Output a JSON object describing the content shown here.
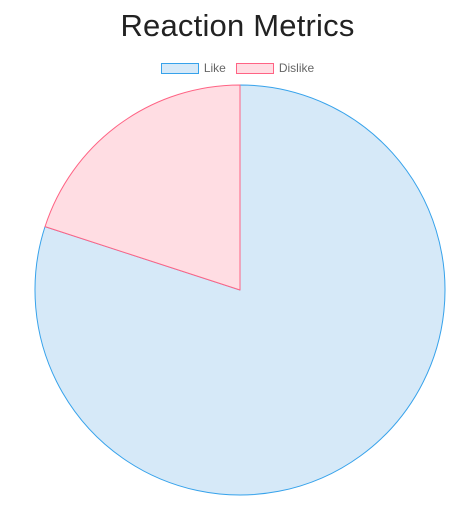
{
  "chart_data": {
    "type": "pie",
    "title": "Reaction Metrics",
    "legend_position": "top",
    "categories": [
      "Like",
      "Dislike"
    ],
    "values": [
      80,
      20
    ],
    "fill_colors": [
      "#d6e9f8",
      "#ffdde3"
    ],
    "border_colors": [
      "#36a2eb",
      "#ff6384"
    ]
  }
}
